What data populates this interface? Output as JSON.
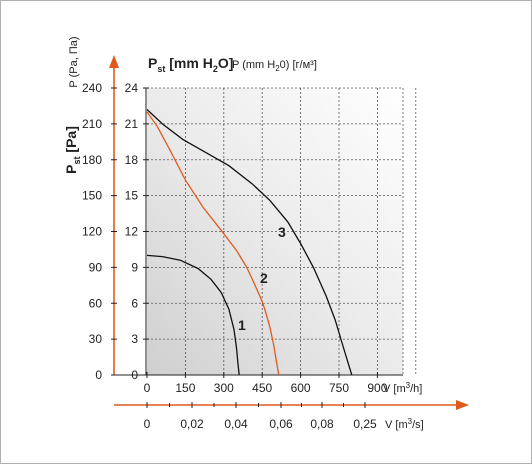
{
  "chart_data": {
    "type": "line",
    "header": {
      "pst_main": "P",
      "pst_sub": "st",
      "pst_unit": " [mm H",
      "pst_unit_sub": "2",
      "pst_unit_end": "O]",
      "p_alt_main": "P (mm H",
      "p_alt_sub": "2",
      "p_alt_end": "0) [г/м³]"
    },
    "ylabel_left": {
      "main": "P",
      "sub": "st",
      "unit": " [Pa]"
    },
    "ylabel_top": "P (Pa, Па)",
    "xlabel_flow_h": "V [m³/h]",
    "xlabel_flow_s": "V [m³/s]",
    "x_range_m3h": [
      0,
      1000
    ],
    "y_range_pa": [
      0,
      240
    ],
    "pa_ticks": [
      0,
      30,
      60,
      90,
      120,
      150,
      180,
      210,
      240
    ],
    "mmh2o_ticks": [
      0,
      3,
      6,
      9,
      12,
      15,
      18,
      21,
      24
    ],
    "m3h_ticks": [
      "0",
      "150",
      "300",
      "450",
      "600",
      "750",
      "900"
    ],
    "m3s_ticks": [
      "0",
      "0,02",
      "0,04",
      "0,06",
      "0,08",
      "0,25"
    ],
    "grid": true,
    "series": [
      {
        "name": "1",
        "color": "#111111",
        "x": [
          0,
          60,
          130,
          200,
          250,
          290,
          320,
          340,
          350,
          355,
          360
        ],
        "y": [
          100,
          99,
          96,
          89,
          80,
          69,
          55,
          38,
          22,
          10,
          0
        ]
      },
      {
        "name": "2",
        "color": "#e05a1e",
        "x": [
          0,
          40,
          90,
          150,
          220,
          290,
          350,
          390,
          420,
          445,
          460,
          480,
          495,
          505,
          515
        ],
        "y": [
          220,
          208,
          188,
          163,
          140,
          121,
          104,
          90,
          76,
          64,
          55,
          40,
          25,
          12,
          0
        ]
      },
      {
        "name": "3",
        "color": "#111111",
        "x": [
          0,
          60,
          140,
          230,
          320,
          410,
          480,
          550,
          600,
          650,
          700,
          735,
          760,
          780,
          800
        ],
        "y": [
          222,
          210,
          197,
          186,
          175,
          160,
          146,
          128,
          110,
          90,
          66,
          46,
          28,
          14,
          0
        ]
      }
    ]
  }
}
